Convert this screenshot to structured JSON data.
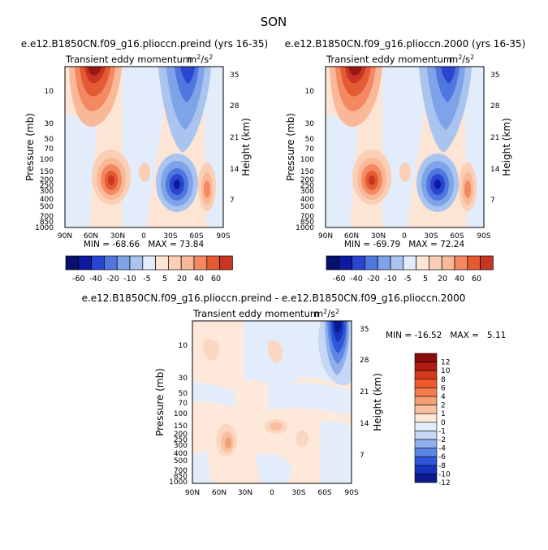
{
  "figure": {
    "season": "SON"
  },
  "chart_data": [
    {
      "type": "heatmap",
      "title": "e.e12.B1850CN.f09_g16.plioccn.preind (yrs 16-35)",
      "subtitle": "Transient eddy momentum",
      "units": "m²/s²",
      "units_base": "m",
      "units_exp1": "2",
      "units_mid": "/s",
      "units_exp2": "2",
      "xlabel": "",
      "ylabel": "Pressure (mb)",
      "y2label": "Height (km)",
      "x_ticks": [
        "90N",
        "60N",
        "30N",
        "0",
        "30S",
        "60S",
        "90S"
      ],
      "y_ticks": [
        "10",
        "30",
        "50",
        "70",
        "100",
        "150",
        "200",
        "250",
        "300",
        "400",
        "500",
        "700",
        "850",
        "1000"
      ],
      "y2_ticks": [
        "35",
        "28",
        "21",
        "14",
        "7"
      ],
      "stats": "MIN = -68.66   MAX = 73.84",
      "contour_levels": [
        -60,
        -40,
        -20,
        -10,
        -5,
        5,
        10,
        20,
        40,
        60
      ],
      "colorbar_labels": [
        "-60",
        "-40",
        "-20",
        "-10",
        "-5",
        "5",
        "20",
        "40",
        "60"
      ],
      "features": [
        {
          "lat": 55,
          "p": 5,
          "v": 60
        },
        {
          "lat": 35,
          "p": 200,
          "v": 45
        },
        {
          "lat": -35,
          "p": 200,
          "v": -68
        },
        {
          "lat": -55,
          "p": 5,
          "v": -35
        },
        {
          "lat": -60,
          "p": 200,
          "v": 22
        },
        {
          "lat": 0,
          "p": 150,
          "v": 8
        }
      ]
    },
    {
      "type": "heatmap",
      "title": "e.e12.B1850CN.f09_g16.plioccn.2000 (yrs 16-35)",
      "subtitle": "Transient eddy momentum",
      "units": "m²/s²",
      "units_base": "m",
      "units_exp1": "2",
      "units_mid": "/s",
      "units_exp2": "2",
      "xlabel": "",
      "ylabel": "Pressure (mb)",
      "y2label": "Height (km)",
      "x_ticks": [
        "90N",
        "60N",
        "30N",
        "0",
        "30S",
        "60S",
        "90S"
      ],
      "y_ticks": [
        "10",
        "30",
        "50",
        "70",
        "100",
        "150",
        "200",
        "250",
        "300",
        "400",
        "500",
        "700",
        "850",
        "1000"
      ],
      "y2_ticks": [
        "35",
        "28",
        "21",
        "14",
        "7"
      ],
      "stats": "MIN = -69.79   MAX = 72.24",
      "contour_levels": [
        -60,
        -40,
        -20,
        -10,
        -5,
        5,
        10,
        20,
        40,
        60
      ],
      "colorbar_labels": [
        "-60",
        "-40",
        "-20",
        "-10",
        "-5",
        "5",
        "20",
        "40",
        "60"
      ],
      "features": [
        {
          "lat": 55,
          "p": 5,
          "v": 58
        },
        {
          "lat": 35,
          "p": 200,
          "v": 45
        },
        {
          "lat": -35,
          "p": 200,
          "v": -70
        },
        {
          "lat": -55,
          "p": 5,
          "v": -35
        },
        {
          "lat": -60,
          "p": 200,
          "v": 22
        },
        {
          "lat": 0,
          "p": 150,
          "v": 8
        }
      ]
    },
    {
      "type": "heatmap",
      "title": "e.e12.B1850CN.f09_g16.plioccn.preind - e.e12.B1850CN.f09_g16.plioccn.2000",
      "subtitle": "Transient eddy momentum",
      "units": "m²/s²",
      "units_base": "m",
      "units_exp1": "2",
      "units_mid": "/s",
      "units_exp2": "2",
      "xlabel": "",
      "ylabel": "Pressure (mb)",
      "y2label": "Height (km)",
      "x_ticks": [
        "90N",
        "60N",
        "30N",
        "0",
        "30S",
        "60S",
        "90S"
      ],
      "y_ticks": [
        "10",
        "30",
        "50",
        "70",
        "100",
        "150",
        "200",
        "250",
        "300",
        "400",
        "500",
        "700",
        "850",
        "1000"
      ],
      "y2_ticks": [
        "35",
        "28",
        "21",
        "14",
        "7"
      ],
      "stats": "MIN = -16.52   MAX =   5.11",
      "contour_levels": [
        -12,
        -10,
        -8,
        -6,
        -4,
        -2,
        -1,
        0,
        1,
        2,
        4,
        6,
        8,
        10,
        12
      ],
      "colorbar_labels": [
        "12",
        "10",
        "8",
        "6",
        "4",
        "2",
        "1",
        "0",
        "-1",
        "-2",
        "-4",
        "-6",
        "-8",
        "-10",
        "-12"
      ],
      "features": [
        {
          "lat": -68,
          "p": 5,
          "v": -16
        },
        {
          "lat": 45,
          "p": 220,
          "v": 4
        },
        {
          "lat": 5,
          "p": 140,
          "v": 2.5
        },
        {
          "lat": -25,
          "p": 220,
          "v": 2
        },
        {
          "lat": 30,
          "p": 30,
          "v": 1.5
        },
        {
          "lat": -35,
          "p": 40,
          "v": -1.5
        }
      ]
    }
  ]
}
